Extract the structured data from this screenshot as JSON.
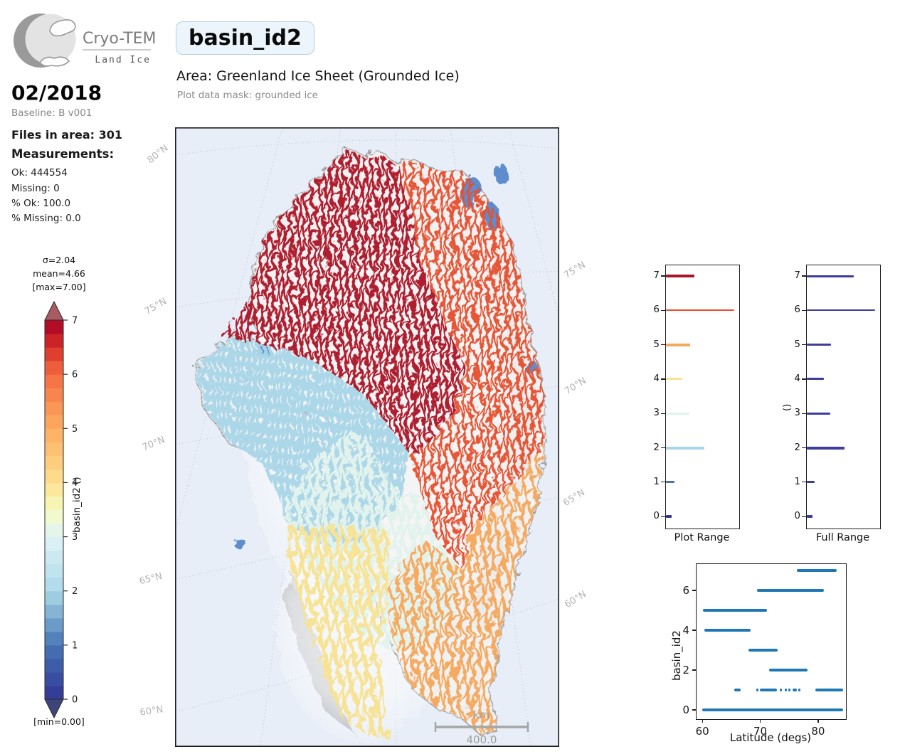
{
  "header": {
    "logo_title": "Cryo-TEMPO",
    "logo_subtitle": "Land Ice",
    "param_name": "basin_id2",
    "area_label": "Area: Greenland Ice Sheet (Grounded Ice)",
    "mask_label": "Plot data mask: grounded ice"
  },
  "sidebar": {
    "date": "02/2018",
    "baseline": "Baseline: B v001",
    "files_label": "Files in area: 301",
    "measurements_label": "Measurements:",
    "stats": [
      "Ok: 444554",
      "Missing: 0",
      "% Ok: 100.0",
      "% Missing: 0.0"
    ]
  },
  "colorbar": {
    "sigma": "σ=2.04",
    "mean": "mean=4.66",
    "max_label": "[max=7.00]",
    "min_label": "[min=0.00]",
    "axis_label": "basin_id2 ()",
    "ticks": [
      7,
      6,
      5,
      4,
      3,
      2,
      1,
      0
    ],
    "stops": [
      {
        "v": 0,
        "c": "#313695"
      },
      {
        "v": 1,
        "c": "#4575b4"
      },
      {
        "v": 2,
        "c": "#abd9e9"
      },
      {
        "v": 3,
        "c": "#e0f3f8"
      },
      {
        "v": 3.5,
        "c": "#f6fbc0"
      },
      {
        "v": 4,
        "c": "#fee090"
      },
      {
        "v": 5,
        "c": "#fdae61"
      },
      {
        "v": 6,
        "c": "#f46d43"
      },
      {
        "v": 6.5,
        "c": "#d73027"
      },
      {
        "v": 7,
        "c": "#a50026"
      }
    ],
    "over_color": "#a85b60",
    "under_color": "#3e4677"
  },
  "palette": {
    "0": "#313695",
    "1": "#4575b4",
    "2": "#a9d6e8",
    "3": "#e1f3ec",
    "4": "#f8e392",
    "5": "#f5a85c",
    "6": "#e6502f",
    "7": "#ac1227"
  },
  "map": {
    "lat_labels_left": [
      "80°N",
      "75°N",
      "70°N",
      "65°N",
      "60°N"
    ],
    "lat_labels_right": [
      "75°N",
      "70°N",
      "65°N",
      "60°N"
    ],
    "scalebar": {
      "unit": "km",
      "length": "400.0"
    },
    "colors": {
      "ocean": "#e8eef8",
      "land": "#f5f5f5",
      "coast_gray": "#8e8e8e",
      "coast_blue": "#4f82c8",
      "speck_navy": "#2c36a6",
      "frame": "#1a1a1a",
      "graticule": "#c9ccd4",
      "scalebar": "#a6a6a6",
      "labels": "#b3b3b6"
    }
  },
  "chart_data": [
    {
      "type": "bar",
      "orientation": "horizontal",
      "title": "Plot Range",
      "ylim": [
        0,
        7
      ],
      "yticks": [
        0,
        1,
        2,
        3,
        4,
        5,
        6,
        7
      ],
      "colored_by_value": true,
      "rows": [
        {
          "value": 7,
          "length": 0.4,
          "lw": 4
        },
        {
          "value": 6,
          "length": 0.95,
          "lw": 2
        },
        {
          "value": 5,
          "length": 0.34,
          "lw": 4
        },
        {
          "value": 4,
          "length": 0.23,
          "lw": 3
        },
        {
          "value": 3,
          "length": 0.33,
          "lw": 3
        },
        {
          "value": 2,
          "length": 0.53,
          "lw": 4
        },
        {
          "value": 1,
          "length": 0.12,
          "lw": 3
        },
        {
          "value": 0,
          "length": 0.08,
          "lw": 4
        }
      ]
    },
    {
      "type": "bar",
      "orientation": "horizontal",
      "title": "Full Range",
      "ylabel": "()",
      "ylim": [
        0,
        7
      ],
      "yticks": [
        0,
        1,
        2,
        3,
        4,
        5,
        6,
        7
      ],
      "colored_by_value": false,
      "bar_color": "#3d3d9e",
      "rows": [
        {
          "value": 7,
          "length": 0.65,
          "lw": 3
        },
        {
          "value": 6,
          "length": 0.95,
          "lw": 2
        },
        {
          "value": 5,
          "length": 0.34,
          "lw": 3
        },
        {
          "value": 4,
          "length": 0.24,
          "lw": 3
        },
        {
          "value": 3,
          "length": 0.33,
          "lw": 3
        },
        {
          "value": 2,
          "length": 0.52,
          "lw": 4
        },
        {
          "value": 1,
          "length": 0.11,
          "lw": 3
        },
        {
          "value": 0,
          "length": 0.08,
          "lw": 4
        }
      ]
    },
    {
      "type": "scatter",
      "xlabel": "Latitude (degs)",
      "ylabel": "basin_id2",
      "xlim": [
        59.0,
        84.8
      ],
      "ylim": [
        -0.5,
        7.5
      ],
      "xticks": [
        60,
        70,
        80
      ],
      "yticks": [
        0,
        2,
        4,
        6
      ],
      "color": "#1f77b4",
      "segments": [
        {
          "y": 7,
          "spans": [
            [
              76.3,
              83.2
            ]
          ]
        },
        {
          "y": 6,
          "spans": [
            [
              69.5,
              81.0
            ]
          ]
        },
        {
          "y": 5,
          "spans": [
            [
              60.1,
              71.2
            ]
          ]
        },
        {
          "y": 4,
          "spans": [
            [
              60.4,
              68.3
            ]
          ]
        },
        {
          "y": 3,
          "spans": [
            [
              68.0,
              73.0
            ]
          ]
        },
        {
          "y": 2,
          "spans": [
            [
              71.5,
              78.2
            ]
          ]
        },
        {
          "y": 1,
          "spans": [
            [
              65.5,
              66.6
            ],
            [
              69.3,
              69.6
            ],
            [
              69.9,
              72.9
            ],
            [
              73.4,
              73.7
            ],
            [
              74.2,
              74.5
            ],
            [
              74.9,
              75.1
            ],
            [
              75.6,
              76.3
            ],
            [
              76.6,
              76.9
            ],
            [
              79.5,
              84.3
            ]
          ]
        },
        {
          "y": 0,
          "spans": [
            [
              60.0,
              84.3
            ]
          ]
        }
      ]
    }
  ]
}
